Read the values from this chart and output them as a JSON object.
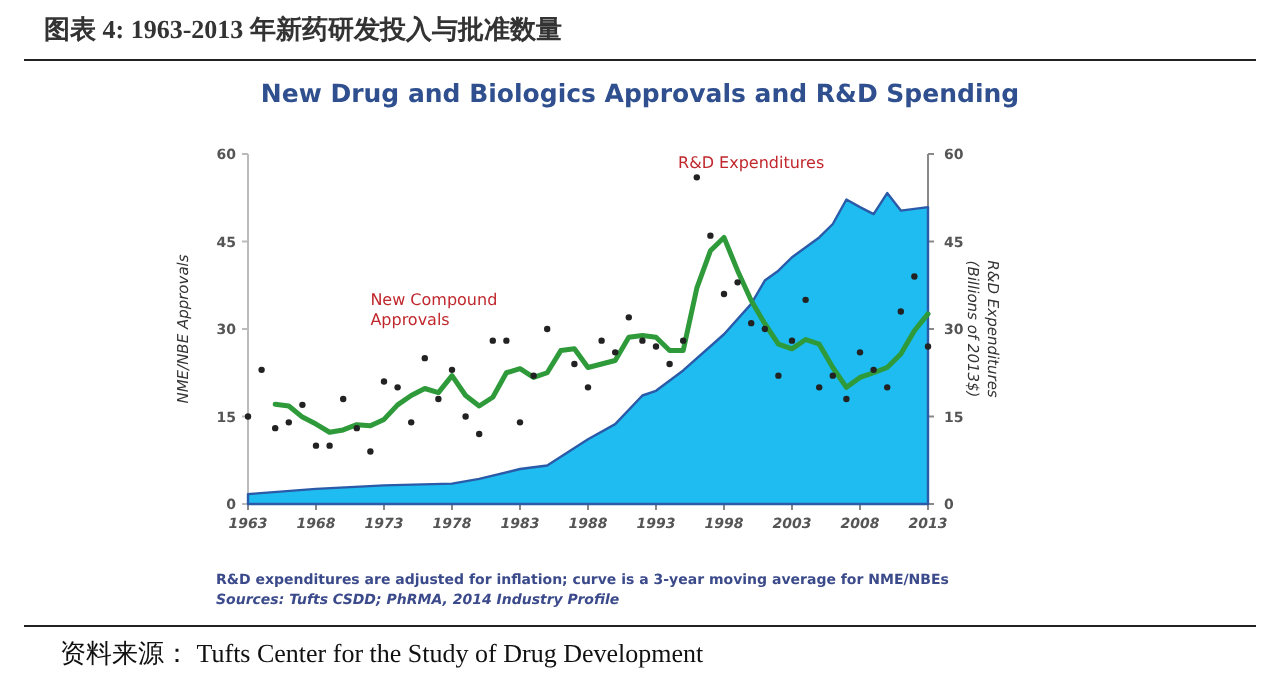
{
  "chart_data": {
    "type": "area",
    "title": "图表 4: 1963-2013 年新药研发投入与批准数量",
    "subtitle": "New Drug and Biologics Approvals and R&D Spending",
    "ylabel": "NME/NBE Approvals",
    "y2label": "R&D Expenditures (Billions of 2013$)",
    "xlim": [
      1963,
      2013
    ],
    "xticks": [
      1963,
      1968,
      1973,
      1978,
      1983,
      1988,
      1993,
      1998,
      2003,
      2008,
      2013
    ],
    "ylim": [
      0,
      60
    ],
    "yticks": [
      0,
      15,
      30,
      45,
      60
    ],
    "y2lim": [
      0,
      60
    ],
    "y2ticks": [
      0,
      15,
      30,
      45,
      60
    ],
    "grid": false,
    "series": [
      {
        "name": "R&D Expenditures",
        "color": "#1ebcf0",
        "x": [
          1963,
          1968,
          1973,
          1978,
          1980,
          1983,
          1985,
          1988,
          1990,
          1992,
          1993,
          1995,
          1998,
          2000,
          2001,
          2002,
          2003,
          2005,
          2006,
          2007,
          2008,
          2009,
          2010,
          2011,
          2013
        ],
        "values": [
          1.7,
          2.6,
          3.2,
          3.5,
          4.3,
          6.0,
          6.6,
          11.1,
          13.7,
          18.6,
          19.4,
          22.9,
          29.1,
          34.3,
          38.3,
          40,
          42.3,
          45.7,
          48,
          52.2,
          50.9,
          49.7,
          53.3,
          50.3,
          50.9
        ]
      },
      {
        "type": "scatter",
        "marker": "circle",
        "color": "#222222",
        "x": [
          1963,
          1964,
          1965,
          1966,
          1967,
          1968,
          1969,
          1970,
          1971,
          1972,
          1973,
          1974,
          1975,
          1976,
          1977,
          1978,
          1979,
          1980,
          1981,
          1982,
          1983,
          1984,
          1985,
          1986,
          1987,
          1988,
          1989,
          1990,
          1991,
          1992,
          1993,
          1994,
          1995,
          1996,
          1997,
          1998,
          1999,
          2000,
          2001,
          2002,
          2003,
          2004,
          2005,
          2006,
          2007,
          2008,
          2009,
          2010,
          2011,
          2012,
          2013
        ],
        "values": [
          15,
          23,
          13,
          14,
          17,
          10,
          10,
          18,
          13,
          9,
          21,
          20,
          14,
          25,
          18,
          23,
          15,
          12,
          28,
          28,
          14,
          22,
          30,
          null,
          24,
          20,
          28,
          26,
          32,
          28,
          27,
          24,
          28,
          56,
          46,
          36,
          38,
          31,
          30,
          22,
          28,
          35,
          20,
          22,
          18,
          26,
          23,
          20,
          33,
          39,
          27
        ]
      },
      {
        "name": "New Compound Approvals",
        "type": "line",
        "marker": "none",
        "line_style": "solid",
        "color": "#2e9a3a",
        "x": [
          1965,
          1966,
          1967,
          1968,
          1969,
          1970,
          1971,
          1972,
          1973,
          1974,
          1975,
          1976,
          1977,
          1978,
          1979,
          1980,
          1981,
          1982,
          1983,
          1984,
          1985,
          1986,
          1987,
          1988,
          1989,
          1990,
          1991,
          1992,
          1993,
          1994,
          1995,
          1996,
          1997,
          1998,
          1999,
          2000,
          2001,
          2002,
          2003,
          2004,
          2005,
          2006,
          2007,
          2008,
          2009,
          2010,
          2011,
          2012,
          2013
        ],
        "values": [
          17.1,
          16.8,
          14.9,
          13.7,
          12.3,
          12.7,
          13.6,
          13.4,
          14.5,
          17,
          18.6,
          19.8,
          19.1,
          22,
          18.6,
          16.8,
          18.3,
          22.5,
          23.2,
          21.7,
          22.5,
          26.3,
          26.6,
          23.4,
          24,
          24.6,
          28.6,
          28.9,
          28.6,
          26.3,
          26.3,
          37,
          43.4,
          45.7,
          40,
          34.9,
          30.9,
          27.4,
          26.6,
          28.2,
          27.4,
          23.4,
          20,
          21.7,
          22.5,
          23.4,
          25.7,
          29.7,
          32.6
        ]
      }
    ],
    "annotations": [
      "R&D expenditures are adjusted for inflation; curve is a 3-year moving average for NME/NBEs",
      "Sources: Tufts CSDD; PhRMA, 2014 Industry Profile",
      "资料来源： Tufts Center for the Study of Drug Development"
    ]
  }
}
